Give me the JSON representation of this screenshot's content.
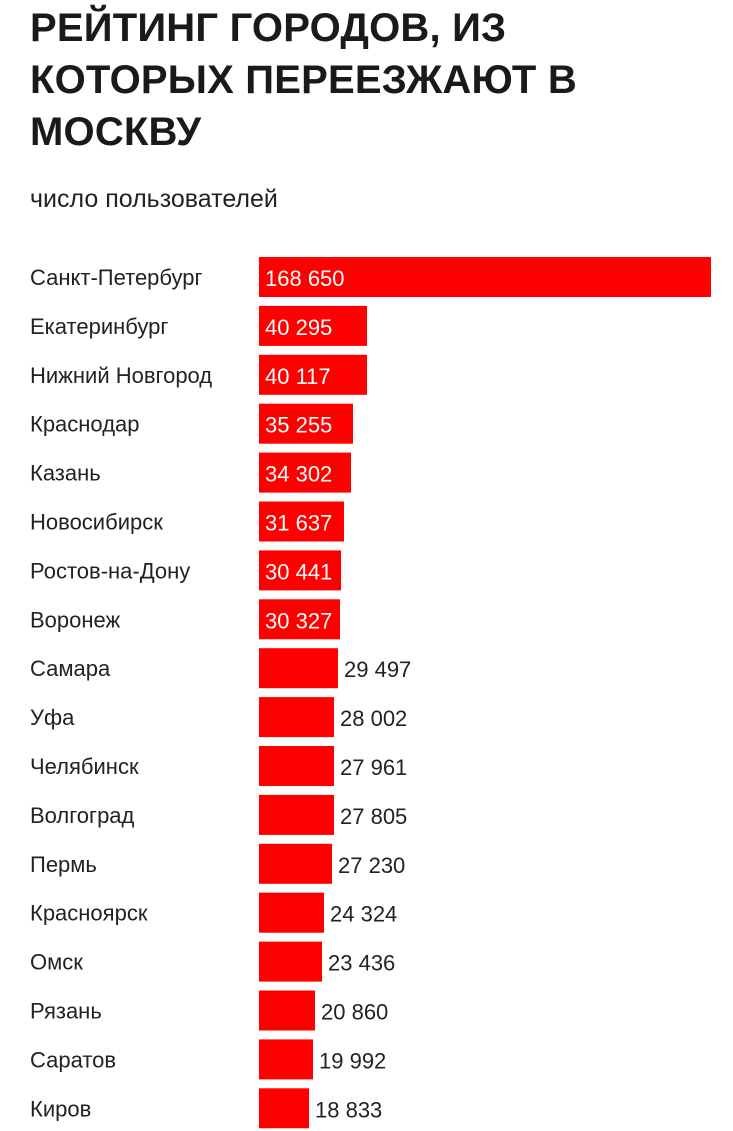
{
  "chart_data": {
    "type": "bar",
    "orientation": "horizontal",
    "title": "РЕЙТИНГ ГОРОДОВ, ИЗ КОТОРЫХ ПЕРЕЕЗЖАЮТ В МОСКВУ",
    "subtitle": "число пользователей",
    "categories": [
      "Санкт-Петербург",
      "Екатеринбург",
      "Нижний Новгород",
      "Краснодар",
      "Казань",
      "Новосибирск",
      "Ростов-на-Дону",
      "Воронеж",
      "Самара",
      "Уфа",
      "Челябинск",
      "Волгоград",
      "Пермь",
      "Красноярск",
      "Омск",
      "Рязань",
      "Саратов",
      "Киров"
    ],
    "values": [
      168650,
      40295,
      40117,
      35255,
      34302,
      31637,
      30441,
      30327,
      29497,
      28002,
      27961,
      27805,
      27230,
      24324,
      23436,
      20860,
      19992,
      18833
    ],
    "value_labels": [
      "168 650",
      "40 295",
      "40 117",
      "35 255",
      "34 302",
      "31 637",
      "30 441",
      "30 327",
      "29 497",
      "28 002",
      "27 961",
      "27 805",
      "27 230",
      "24 324",
      "23 436",
      "20 860",
      "19 992",
      "18 833"
    ],
    "bar_color": "#ff0000",
    "label_inside_color": "#ffffff",
    "label_outside_color": "#222222",
    "grid": false
  }
}
